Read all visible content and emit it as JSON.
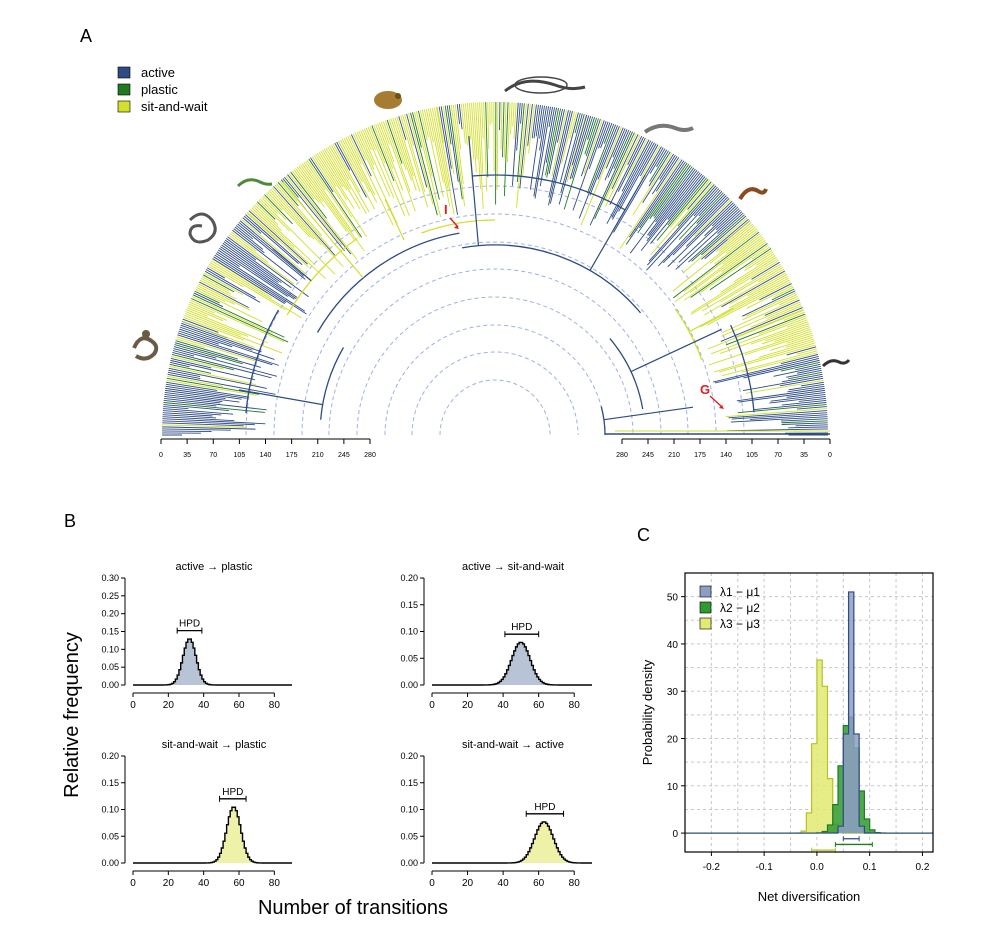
{
  "panel_labels": {
    "a": "A",
    "b": "B",
    "c": "C"
  },
  "legend_a": [
    {
      "label": "active",
      "color": "#2d4b85"
    },
    {
      "label": "plastic",
      "color": "#207a1f"
    },
    {
      "label": "sit-and-wait",
      "color": "#d2e02c"
    }
  ],
  "tree": {
    "left_axis_ticks": [
      "0",
      "35",
      "70",
      "105",
      "140",
      "175",
      "210",
      "245",
      "280"
    ],
    "right_axis_ticks": [
      "280",
      "245",
      "210",
      "175",
      "140",
      "105",
      "70",
      "35",
      "0"
    ],
    "markers": [
      {
        "label": "I"
      },
      {
        "label": "G"
      }
    ],
    "silhouettes": [
      "snake-icon",
      "snake-coiled-icon",
      "lizard-small-icon",
      "chameleon-icon",
      "iguana-icon",
      "monitor-lizard-icon",
      "gecko-icon",
      "dragon-lizard-icon"
    ]
  },
  "chart_data": [
    {
      "type": "bar",
      "title": "active → plastic",
      "annotation": "HPD",
      "x_ticks": [
        "0",
        "20",
        "40",
        "60",
        "80"
      ],
      "y_ticks": [
        "0.00",
        "0.05",
        "0.10",
        "0.15",
        "0.20",
        "0.25",
        "0.30"
      ],
      "xlim": [
        0,
        90
      ],
      "ylim": [
        0,
        0.3
      ],
      "color": "#b9c3d6",
      "mean": 32,
      "sd": 3.7,
      "peak": 0.13,
      "hpd": [
        25,
        39
      ]
    },
    {
      "type": "bar",
      "title": "active → sit-and-wait",
      "annotation": "HPD",
      "x_ticks": [
        "0",
        "20",
        "40",
        "60",
        "80"
      ],
      "y_ticks": [
        "0.00",
        "0.05",
        "0.10",
        "0.15",
        "0.20"
      ],
      "xlim": [
        0,
        90
      ],
      "ylim": [
        0,
        0.2
      ],
      "color": "#b9c3d6",
      "mean": 50,
      "sd": 5.2,
      "peak": 0.08,
      "hpd": [
        41,
        60
      ]
    },
    {
      "type": "bar",
      "title": "sit-and-wait → plastic",
      "annotation": "HPD",
      "x_ticks": [
        "0",
        "20",
        "40",
        "60",
        "80"
      ],
      "y_ticks": [
        "0.00",
        "0.05",
        "0.10",
        "0.15",
        "0.20"
      ],
      "xlim": [
        0,
        90
      ],
      "ylim": [
        0,
        0.2
      ],
      "color": "#eef2a9",
      "mean": 57,
      "sd": 4.0,
      "peak": 0.105,
      "hpd": [
        49,
        64
      ]
    },
    {
      "type": "bar",
      "title": "sit-and-wait → active",
      "annotation": "HPD",
      "x_ticks": [
        "0",
        "20",
        "40",
        "60",
        "80"
      ],
      "y_ticks": [
        "0.00",
        "0.05",
        "0.10",
        "0.15",
        "0.20"
      ],
      "xlim": [
        0,
        90
      ],
      "ylim": [
        0,
        0.2
      ],
      "color": "#eef2a9",
      "mean": 63,
      "sd": 5.3,
      "peak": 0.077,
      "hpd": [
        53,
        74
      ]
    },
    {
      "type": "bar",
      "xlabel": "Net diversification",
      "ylabel": "Probability density",
      "xlim": [
        -0.25,
        0.22
      ],
      "ylim": [
        -4,
        55
      ],
      "x_ticks": [
        "-0.2",
        "-0.1",
        "0.0",
        "0.1",
        "0.2"
      ],
      "y_ticks": [
        "0",
        "10",
        "20",
        "30",
        "40",
        "50"
      ],
      "grid": true,
      "legend_position": "top-left",
      "series": [
        {
          "name": "λ1 − μ1",
          "color": "#2d4b85",
          "fill": "#8f9dc4",
          "mean": 0.065,
          "sd": 0.0075,
          "peak": 51,
          "hpd": [
            0.05,
            0.08
          ]
        },
        {
          "name": "λ2 − μ2",
          "color": "#207a1f",
          "fill": "#2f9a2e",
          "mean": 0.062,
          "sd": 0.016,
          "peak": 25,
          "hpd": [
            0.035,
            0.105
          ]
        },
        {
          "name": "λ3 − μ3",
          "color": "#b6c21e",
          "fill": "#e2ea72",
          "mean": 0.008,
          "sd": 0.011,
          "peak": 38,
          "hpd": [
            -0.01,
            0.035
          ]
        }
      ]
    }
  ],
  "shared_labels": {
    "ylabel_b": "Relative frequency",
    "xlabel_b": "Number of transitions"
  }
}
